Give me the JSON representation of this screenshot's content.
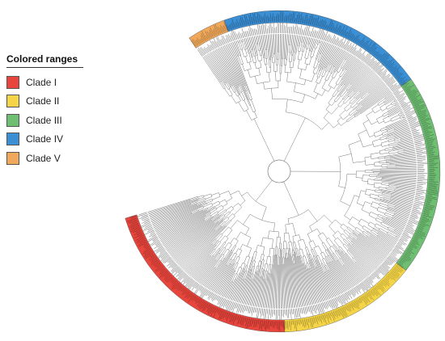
{
  "legend": {
    "title": "Colored ranges",
    "items": [
      {
        "label": "Clade I",
        "color": "#e8453c"
      },
      {
        "label": "Clade II",
        "color": "#f5d547"
      },
      {
        "label": "Clade III",
        "color": "#6fbf73"
      },
      {
        "label": "Clade IV",
        "color": "#3b8fd4"
      },
      {
        "label": "Clade V",
        "color": "#f0a85a"
      }
    ]
  },
  "tree": {
    "clades": [
      {
        "name": "Clade I",
        "color": "#e8453c",
        "start_deg": 197,
        "end_deg": 272,
        "leaves": 150
      },
      {
        "name": "Clade II",
        "color": "#f5d547",
        "start_deg": 272,
        "end_deg": 322,
        "leaves": 100
      },
      {
        "name": "Clade III",
        "color": "#6fbf73",
        "start_deg": 322,
        "end_deg": 395,
        "leaves": 140
      },
      {
        "name": "Clade IV",
        "color": "#3b8fd4",
        "start_deg": 395,
        "end_deg": 470,
        "leaves": 145
      },
      {
        "name": "Clade V",
        "color": "#f0a85a",
        "start_deg": 470,
        "end_deg": 484,
        "leaves": 26
      }
    ],
    "branch_color": "#666666"
  }
}
